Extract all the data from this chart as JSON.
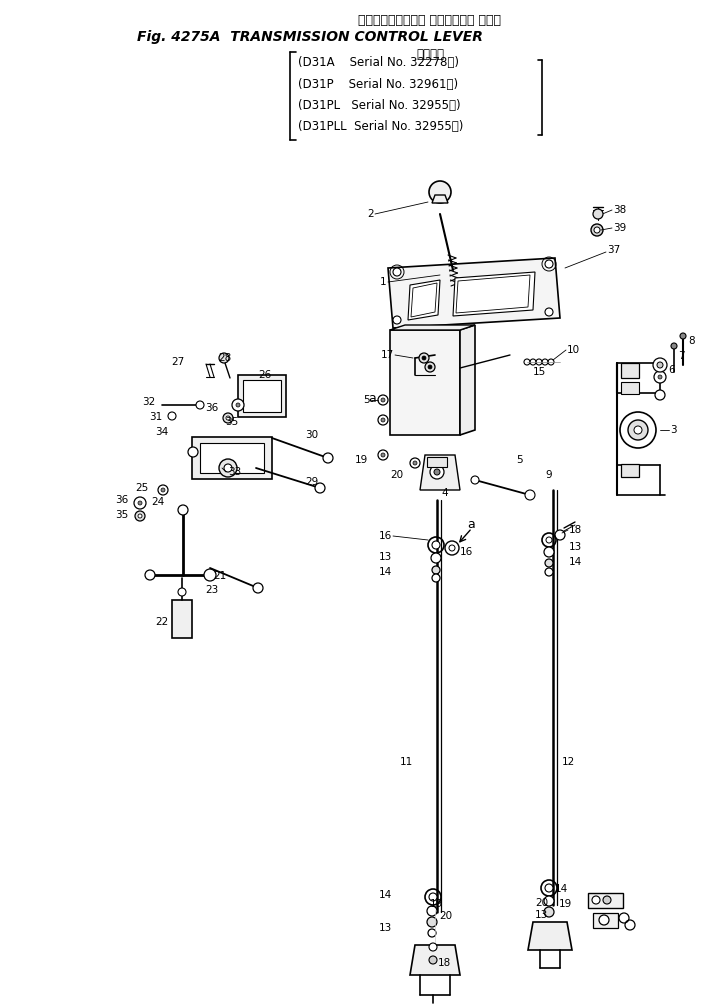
{
  "title_japanese": "トランスミッション コントロール レバー",
  "title_fig": "Fig. 4275A  TRANSMISSION CONTROL LEVER",
  "applicable_label": "適用号機",
  "model_lines": [
    "(D31A    Serial No. 32278～)",
    "(D31P    Serial No. 32961～)",
    "(D31PL   Serial No. 32955～)",
    "(D31PLL  Serial No. 32955～)"
  ],
  "bg_color": "#ffffff",
  "lc": "#000000",
  "tc": "#000000",
  "fig_width": 7.18,
  "fig_height": 10.07
}
